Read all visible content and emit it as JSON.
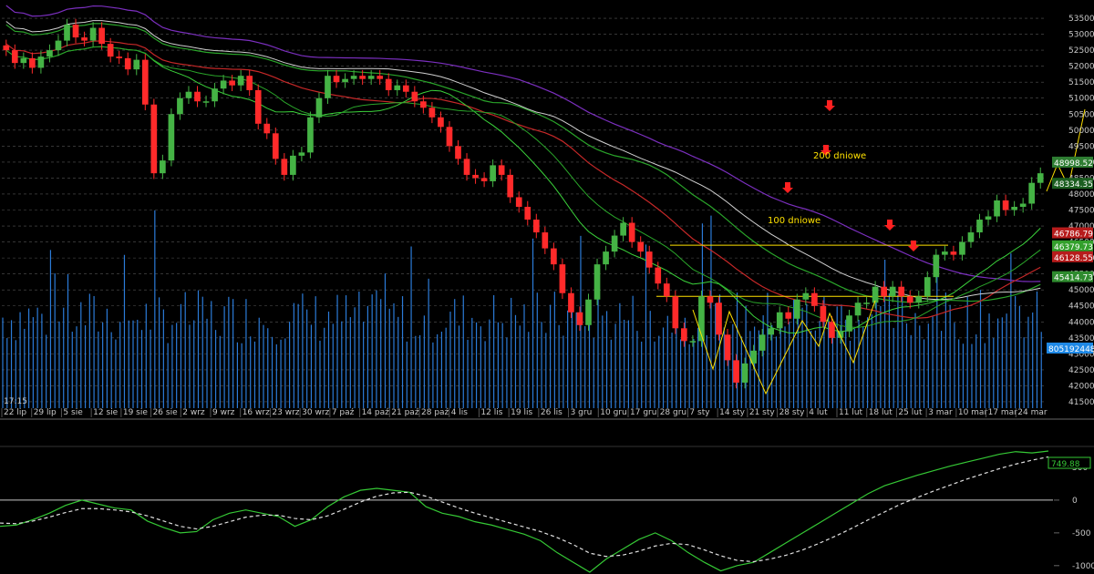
{
  "chart_data": [
    {
      "type": "candlestick",
      "time_label": "17:15",
      "date_labels": [
        "22 lip",
        "29 lip",
        "5 sie",
        "12 sie",
        "19 sie",
        "26 sie",
        "2 wrz",
        "9 wrz",
        "16 wrz",
        "23 wrz",
        "30 wrz",
        "7 paź",
        "14 paź",
        "21 paź",
        "28 paź",
        "4 lis",
        "12 lis",
        "19 lis",
        "26 lis",
        "3 gru",
        "10 gru",
        "17 gru",
        "28 gru",
        "7 sty",
        "14 sty",
        "21 sty",
        "28 sty",
        "4 lut",
        "11 lut",
        "18 lut",
        "25 lut",
        "3 mar",
        "10 mar",
        "17 mar",
        "24 mar"
      ],
      "y_ticks": [
        41500,
        42000,
        42500,
        43000,
        43500,
        44000,
        44500,
        45000,
        45500,
        46000,
        46500,
        47000,
        47500,
        48000,
        48500,
        49000,
        49500,
        50000,
        50500,
        51000,
        51500,
        52000,
        52500,
        53000,
        53500
      ],
      "ylim": [
        41300,
        53900
      ],
      "closes": [
        52500,
        52100,
        52250,
        51950,
        52300,
        52500,
        52800,
        53300,
        52900,
        52800,
        53200,
        52700,
        52300,
        52250,
        51900,
        52200,
        50800,
        48650,
        49050,
        50500,
        51000,
        51200,
        50900,
        50900,
        51300,
        51550,
        51400,
        51700,
        51250,
        50200,
        49900,
        49100,
        48600,
        49200,
        49300,
        50400,
        51000,
        51700,
        51500,
        51600,
        51700,
        51600,
        51700,
        51600,
        51250,
        51400,
        51200,
        50900,
        50700,
        50400,
        50100,
        49500,
        49100,
        48600,
        48500,
        48400,
        48900,
        48600,
        47900,
        47600,
        47200,
        46800,
        46300,
        45800,
        44900,
        44300,
        43900,
        44700,
        45800,
        46200,
        46700,
        47100,
        46500,
        46200,
        45700,
        45200,
        44800,
        43800,
        43400,
        43400,
        44800,
        44600,
        43600,
        42800,
        42100,
        42700,
        43100,
        43600,
        43800,
        44300,
        44100,
        44700,
        44900,
        44500,
        44000,
        43500,
        43700,
        44200,
        44600,
        44600,
        45100,
        44800,
        45100,
        44800,
        44600,
        44800,
        45400,
        46100,
        46200,
        46100,
        46500,
        46800,
        47200,
        47300,
        47800,
        47500,
        47600,
        47700,
        48350,
        48650
      ],
      "volume_label": "805192448",
      "annotations": [
        "200 dniowe",
        "100 dniowe"
      ],
      "price_labels": [
        {
          "text": "48998.52",
          "color": "#2e7d32",
          "value": 48998.52
        },
        {
          "text": "48334.35",
          "color": "#1b5e20",
          "value": 48334.35
        },
        {
          "text": "46786.79",
          "color": "#b71c1c",
          "value": 46786.79
        },
        {
          "text": "46379.73",
          "color": "#33a02c",
          "value": 46379.73
        },
        {
          "text": "46128.55",
          "color": "#b71c1c",
          "value": 46128.55
        },
        {
          "text": "45414.73",
          "color": "#2e8b2e",
          "value": 45414.73
        }
      ],
      "horizontal_levels": [
        46400,
        44800
      ],
      "colors": {
        "up": "#45b345",
        "down": "#ff2a2a",
        "volume": "#2b7bd8",
        "ma200": "#7b2fbf",
        "ma100": "#2aa52a",
        "ma_red": "#c62828",
        "ma_white": "#d0d0d0",
        "ma_green2": "#3bd33b",
        "level": "#ffe100"
      }
    },
    {
      "type": "line",
      "y_ticks": [
        -1000,
        -500,
        0,
        500
      ],
      "ylim": [
        -1100,
        750
      ],
      "series": [
        {
          "style": "solid",
          "color": "#35c835",
          "values": [
            -400,
            -380,
            -300,
            -200,
            -80,
            0,
            -60,
            -120,
            -150,
            -320,
            -420,
            -500,
            -480,
            -300,
            -200,
            -150,
            -200,
            -250,
            -400,
            -300,
            -100,
            50,
            150,
            180,
            150,
            120,
            -100,
            -200,
            -250,
            -330,
            -380,
            -450,
            -520,
            -620,
            -800,
            -950,
            -1100,
            -900,
            -750,
            -600,
            -500,
            -620,
            -800,
            -950,
            -1080,
            -1000,
            -950,
            -800,
            -650,
            -500,
            -350,
            -200,
            -50,
            100,
            220,
            300,
            380,
            450,
            520,
            580,
            640,
            700,
            740,
            720,
            750
          ]
        },
        {
          "style": "dashed",
          "color": "#e0e0e0",
          "values": [
            -350,
            -360,
            -320,
            -260,
            -190,
            -130,
            -130,
            -150,
            -180,
            -240,
            -320,
            -400,
            -440,
            -400,
            -330,
            -260,
            -230,
            -230,
            -280,
            -300,
            -240,
            -140,
            -30,
            60,
            110,
            120,
            60,
            -30,
            -120,
            -200,
            -270,
            -340,
            -410,
            -480,
            -570,
            -680,
            -810,
            -860,
            -840,
            -780,
            -700,
            -660,
            -680,
            -760,
            -850,
            -920,
            -940,
            -900,
            -840,
            -760,
            -660,
            -550,
            -430,
            -300,
            -180,
            -60,
            40,
            140,
            230,
            320,
            400,
            480,
            550,
            610,
            660
          ]
        }
      ],
      "value_label": "749.88"
    }
  ]
}
